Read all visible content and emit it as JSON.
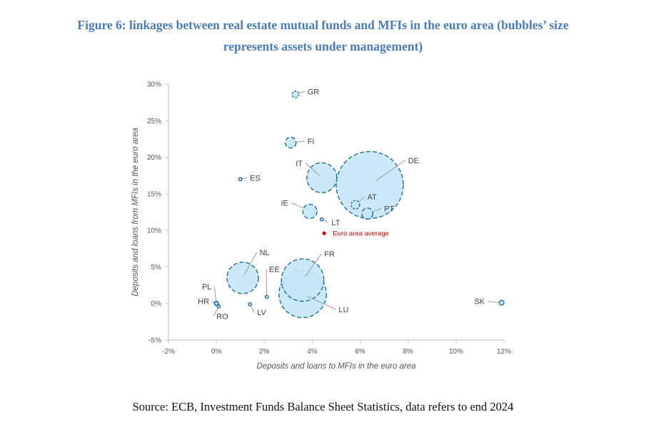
{
  "figure": {
    "title_line1": "Figure 6: linkages between real estate mutual funds and MFIs in the euro area (bubbles’ size",
    "title_line2": "represents assets under management)",
    "source": "Source: ECB, Investment Funds Balance Sheet Statistics, data refers to end 2024"
  },
  "colors": {
    "bubble_fill": "#c5e7f7",
    "bubble_stroke": "#1f6f97",
    "leader": "#9a9a9a",
    "avg": "#cc0000",
    "axis": "#bbbbbb"
  },
  "chart_data": {
    "type": "scatter",
    "subtype": "bubble",
    "title": "Figure 6: linkages between real estate mutual funds and MFIs in the euro area (bubbles’ size represents assets under management)",
    "xlabel": "Deposits and loans to MFIs in the euro area",
    "ylabel": "Deposits and loans from MFIs in the euro area",
    "xlim": [
      -2,
      12
    ],
    "ylim": [
      -5,
      30
    ],
    "xticks": [
      -2,
      0,
      2,
      4,
      6,
      8,
      10,
      12
    ],
    "yticks": [
      -5,
      0,
      5,
      10,
      15,
      20,
      25,
      30
    ],
    "xtick_labels": [
      "-2%",
      "0%",
      "2%",
      "4%",
      "6%",
      "8%",
      "10%",
      "12%"
    ],
    "ytick_labels": [
      "-5%",
      "0%",
      "5%",
      "10%",
      "15%",
      "20%",
      "25%",
      "30%"
    ],
    "size_unit": "relative assets under management (estimated from bubble area)",
    "points": [
      {
        "label": "GR",
        "x": 3.3,
        "y": 28.6,
        "size": 1.0,
        "label_pos": [
          3.8,
          28.6
        ],
        "anchor": "start"
      },
      {
        "label": "FI",
        "x": 3.1,
        "y": 22.0,
        "size": 2.6,
        "label_pos": [
          3.8,
          21.8
        ],
        "anchor": "start"
      },
      {
        "label": "ES",
        "x": 1.0,
        "y": 17.0,
        "size": 0.2,
        "label_pos": [
          1.4,
          16.8
        ],
        "anchor": "start"
      },
      {
        "label": "IT",
        "x": 4.4,
        "y": 17.2,
        "size": 20.0,
        "label_pos": [
          3.6,
          18.8
        ],
        "anchor": "end"
      },
      {
        "label": "DE",
        "x": 6.4,
        "y": 16.2,
        "size": 100.0,
        "label_pos": [
          8.0,
          19.2
        ],
        "anchor": "start"
      },
      {
        "label": "AT",
        "x": 5.8,
        "y": 13.5,
        "size": 1.6,
        "label_pos": [
          6.3,
          14.2
        ],
        "anchor": "start"
      },
      {
        "label": "PT",
        "x": 6.3,
        "y": 12.3,
        "size": 2.7,
        "label_pos": [
          7.0,
          12.6
        ],
        "anchor": "start"
      },
      {
        "label": "IE",
        "x": 3.9,
        "y": 12.6,
        "size": 4.5,
        "label_pos": [
          3.0,
          13.4
        ],
        "anchor": "end"
      },
      {
        "label": "LT",
        "x": 4.4,
        "y": 11.5,
        "size": 0.2,
        "label_pos": [
          4.8,
          10.7
        ],
        "anchor": "start"
      },
      {
        "label": "NL",
        "x": 1.1,
        "y": 3.5,
        "size": 22.0,
        "label_pos": [
          1.8,
          6.6
        ],
        "anchor": "start"
      },
      {
        "label": "EE",
        "x": 2.1,
        "y": 0.9,
        "size": 0.2,
        "label_pos": [
          2.2,
          4.3
        ],
        "anchor": "start"
      },
      {
        "label": "FR",
        "x": 3.6,
        "y": 3.2,
        "size": 40.0,
        "label_pos": [
          4.5,
          6.4
        ],
        "anchor": "start"
      },
      {
        "label": "LU",
        "x": 3.6,
        "y": 1.3,
        "size": 50.0,
        "label_pos": [
          5.1,
          -1.2
        ],
        "anchor": "start"
      },
      {
        "label": "PL",
        "x": 0.0,
        "y": 0.0,
        "size": 0.4,
        "label_pos": [
          -0.2,
          1.9
        ],
        "anchor": "end"
      },
      {
        "label": "HR",
        "x": 0.0,
        "y": 0.0,
        "size": 0.3,
        "label_pos": [
          -0.3,
          -0.1
        ],
        "anchor": "end"
      },
      {
        "label": "RO",
        "x": 0.1,
        "y": -0.4,
        "size": 0.1,
        "label_pos": [
          0.0,
          -2.1
        ],
        "anchor": "start"
      },
      {
        "label": "LV",
        "x": 1.4,
        "y": -0.1,
        "size": 0.05,
        "label_pos": [
          1.7,
          -1.6
        ],
        "anchor": "start"
      },
      {
        "label": "SK",
        "x": 11.9,
        "y": 0.1,
        "size": 0.5,
        "label_pos": [
          11.2,
          -0.1
        ],
        "anchor": "end"
      }
    ],
    "reference_point": {
      "label": "Euro area average",
      "x": 4.5,
      "y": 9.6
    }
  }
}
